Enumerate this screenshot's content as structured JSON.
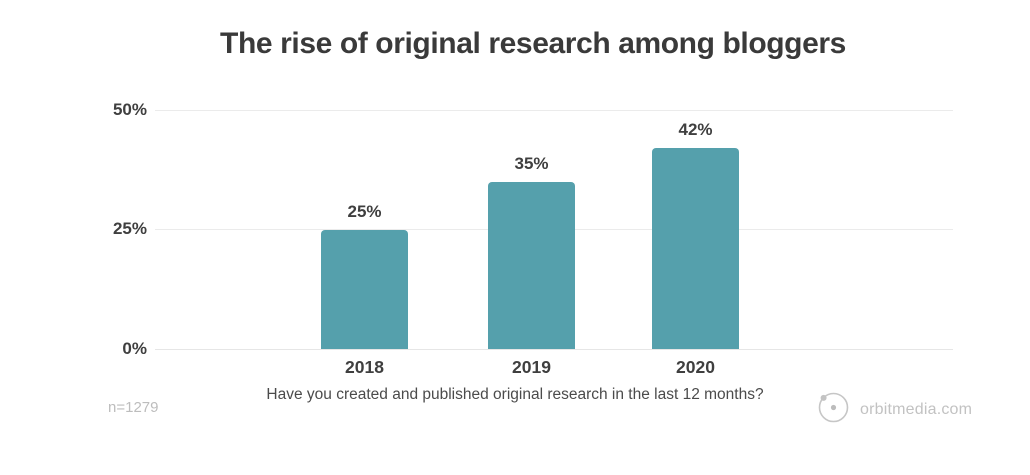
{
  "title": "The rise of original research among bloggers",
  "chart_data": {
    "type": "bar",
    "categories": [
      "2018",
      "2019",
      "2020"
    ],
    "values": [
      25,
      35,
      42
    ],
    "value_labels": [
      "25%",
      "35%",
      "42%"
    ],
    "title": "The rise of original research among bloggers",
    "xlabel": "",
    "ylabel": "",
    "ylim": [
      0,
      50
    ],
    "yticks": [
      "50%",
      "25%",
      "0%"
    ],
    "grid": "horizontal",
    "legend": "none",
    "bar_color": "#55a0ac",
    "caption": "Have you created and published original research in the last 12 months?"
  },
  "footer": {
    "sample_size": "n=1279",
    "caption": "Have you created and published original research in the last 12 months?",
    "brand": "orbitmedia.com"
  }
}
